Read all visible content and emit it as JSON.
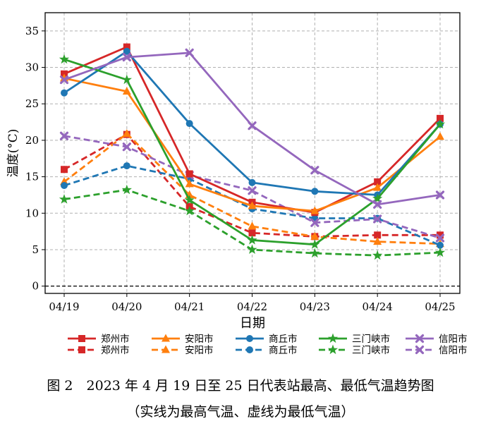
{
  "chart_data": {
    "type": "line",
    "xlabel": "日期",
    "ylabel": "温度(°C)",
    "categories": [
      "04/19",
      "04/20",
      "04/21",
      "04/22",
      "04/23",
      "04/24",
      "04/25"
    ],
    "ylim": [
      -1,
      37.5
    ],
    "yticks": [
      0,
      5,
      10,
      15,
      20,
      25,
      30,
      35
    ],
    "grid": true,
    "legend_position": "bottom",
    "series": [
      {
        "name": "郑州市",
        "style": "solid",
        "color": "#d62728",
        "marker": "square",
        "values": [
          29.1,
          32.8,
          15.4,
          11.5,
          10.1,
          14.3,
          23.0
        ]
      },
      {
        "name": "安阳市",
        "style": "solid",
        "color": "#ff7f0e",
        "marker": "triangle",
        "values": [
          28.5,
          26.7,
          14.0,
          11.0,
          10.3,
          13.5,
          20.5
        ]
      },
      {
        "name": "商丘市",
        "style": "solid",
        "color": "#1f77b4",
        "marker": "circle",
        "values": [
          26.5,
          32.2,
          22.3,
          14.2,
          13.0,
          12.5,
          22.2
        ]
      },
      {
        "name": "三门峡市",
        "style": "solid",
        "color": "#2ca02c",
        "marker": "star",
        "values": [
          31.1,
          28.3,
          11.8,
          6.3,
          5.7,
          12.0,
          22.2
        ]
      },
      {
        "name": "信阳市",
        "style": "solid",
        "color": "#9467bd",
        "marker": "x",
        "values": [
          28.3,
          31.4,
          32.0,
          22.0,
          15.9,
          11.2,
          12.5
        ]
      },
      {
        "name": "郑州市",
        "style": "dashed",
        "color": "#d62728",
        "marker": "square",
        "values": [
          16.0,
          20.8,
          10.9,
          7.3,
          6.8,
          7.0,
          7.0
        ]
      },
      {
        "name": "安阳市",
        "style": "dashed",
        "color": "#ff7f0e",
        "marker": "triangle",
        "values": [
          14.3,
          20.9,
          12.5,
          8.2,
          6.8,
          6.1,
          5.8
        ]
      },
      {
        "name": "商丘市",
        "style": "dashed",
        "color": "#1f77b4",
        "marker": "circle",
        "values": [
          13.8,
          16.5,
          14.7,
          10.6,
          9.3,
          9.3,
          5.6
        ]
      },
      {
        "name": "三门峡市",
        "style": "dashed",
        "color": "#2ca02c",
        "marker": "star",
        "values": [
          11.9,
          13.2,
          10.3,
          5.0,
          4.5,
          4.2,
          4.6
        ]
      },
      {
        "name": "信阳市",
        "style": "dashed",
        "color": "#9467bd",
        "marker": "x",
        "values": [
          20.6,
          19.1,
          15.2,
          13.1,
          8.7,
          9.2,
          6.6
        ]
      }
    ]
  },
  "caption": {
    "main": "图 2　2023 年 4 月 19 日至 25 日代表站最高、最低气温趋势图",
    "sub": "（实线为最高气温、虚线为最低气温）"
  }
}
